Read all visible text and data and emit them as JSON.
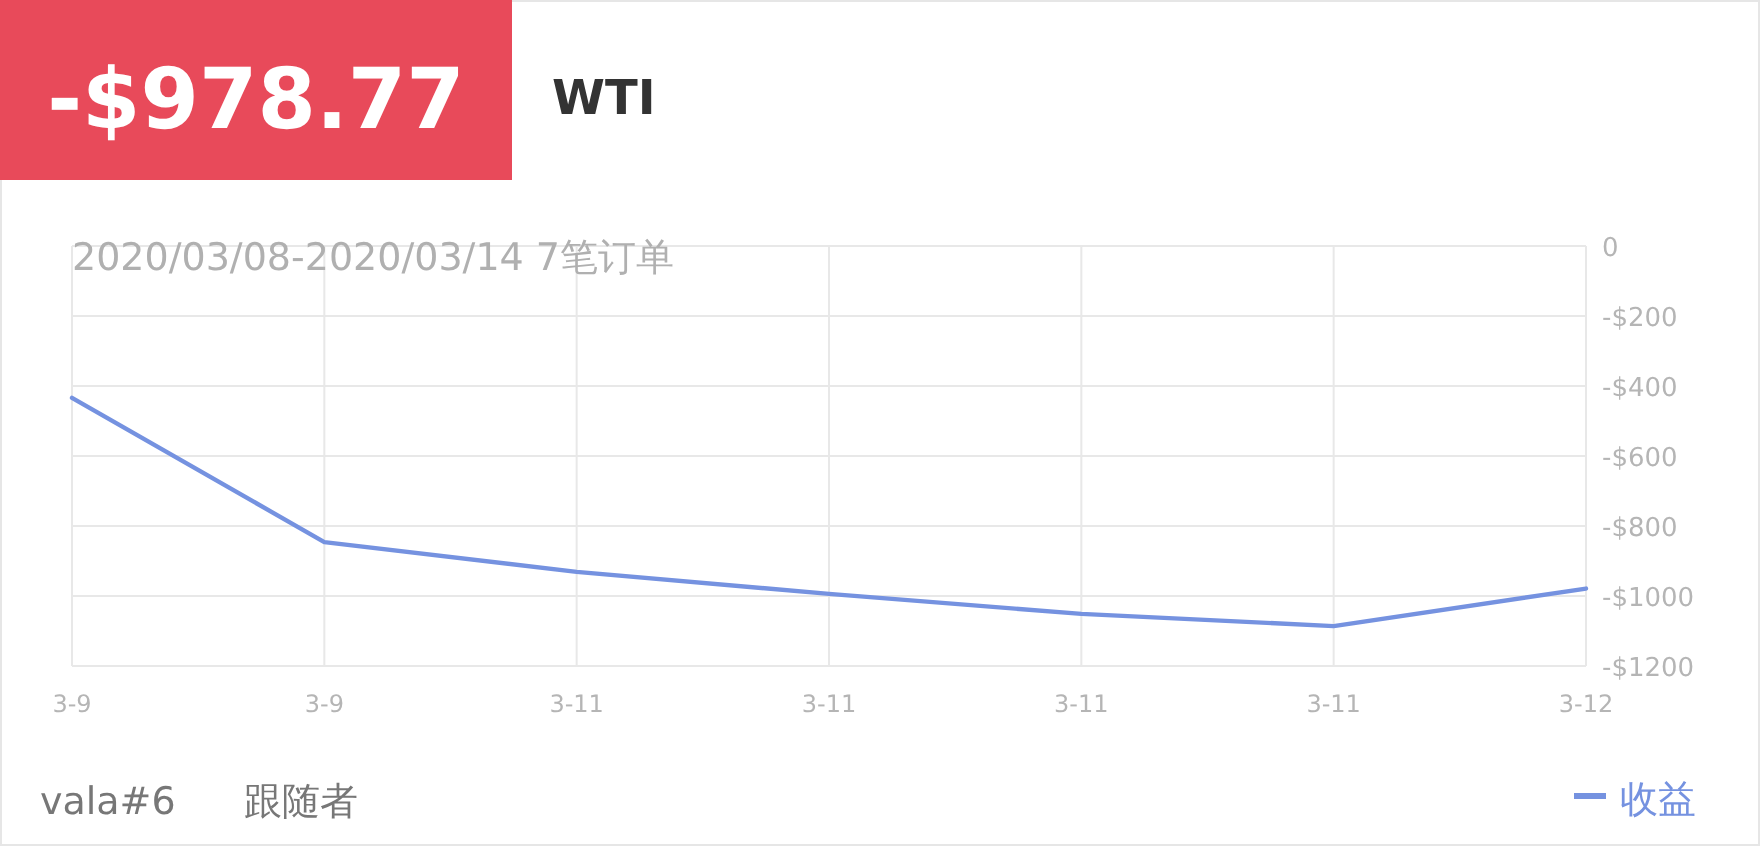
{
  "chart_data": {
    "type": "line",
    "title": "-$978.77",
    "subtitle": "WTI",
    "annotations": [
      "2020/03/08-2020/03/14 7笔订单",
      "vala#6",
      "跟随者"
    ],
    "categories": [
      "3-9",
      "3-9",
      "3-11",
      "3-11",
      "3-11",
      "3-11",
      "3-12"
    ],
    "series": [
      {
        "name": "收益",
        "color": "#7592e0",
        "values": [
          -434,
          -846,
          -931,
          -994,
          -1051,
          -1086,
          -978.77
        ]
      }
    ],
    "ylim": [
      -1200,
      0
    ],
    "yticks": [
      {
        "value": 0,
        "label": "0"
      },
      {
        "value": -200,
        "label": "-$200"
      },
      {
        "value": -400,
        "label": "-$400"
      },
      {
        "value": -600,
        "label": "-$600"
      },
      {
        "value": -800,
        "label": "-$800"
      },
      {
        "value": -1000,
        "label": "-$1000"
      },
      {
        "value": -1200,
        "label": "-$1200"
      }
    ],
    "grid": true,
    "legend": "bottom right",
    "marker": "none"
  }
}
